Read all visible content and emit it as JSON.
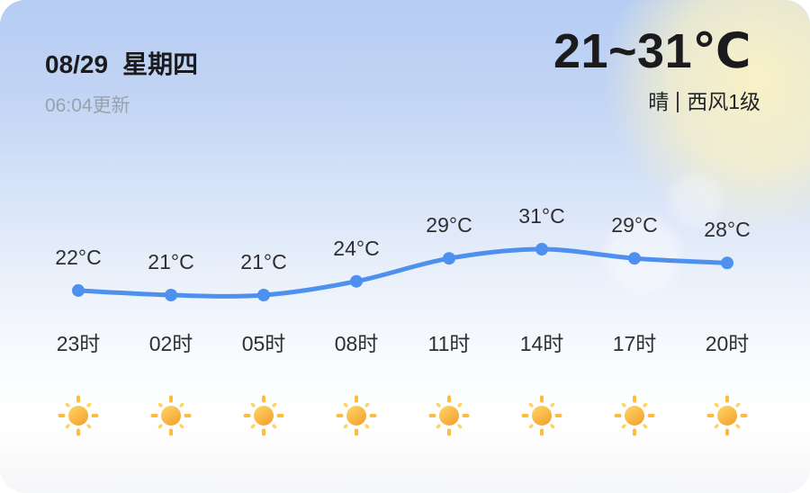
{
  "header": {
    "date": "08/29",
    "weekday": "星期四",
    "updated": "06:04更新",
    "temp_range": "21~31℃",
    "condition": "晴",
    "wind": "西风1级"
  },
  "chart_data": {
    "type": "line",
    "x": [
      "23时",
      "02时",
      "05时",
      "08时",
      "11时",
      "14时",
      "17时",
      "20时"
    ],
    "series": [
      {
        "name": "hourly-temperature",
        "values": [
          22,
          21,
          21,
          24,
          29,
          31,
          29,
          28
        ]
      }
    ],
    "point_labels": [
      "22°C",
      "21°C",
      "21°C",
      "24°C",
      "29°C",
      "31°C",
      "29°C",
      "28°C"
    ],
    "icons": [
      "sun",
      "sun",
      "sun",
      "sun",
      "sun",
      "sun",
      "sun",
      "sun"
    ],
    "ylim": [
      20,
      32
    ],
    "grid": false,
    "legend": "none",
    "line_color": "#4d90ee"
  },
  "colors": {
    "accent_blue": "#4d90ee",
    "text_dark": "#1b1b1d",
    "text_gray": "#99a1ac",
    "bg_top": "#b5ccf3",
    "bg_bottom": "#f5f6f8",
    "sun_glow": "#fcf3c4",
    "sun_core_light": "#ffd666",
    "sun_core_deep": "#f4a433",
    "sun_ray": "#fbbc42",
    "sun_ray_light": "#ffd466"
  }
}
